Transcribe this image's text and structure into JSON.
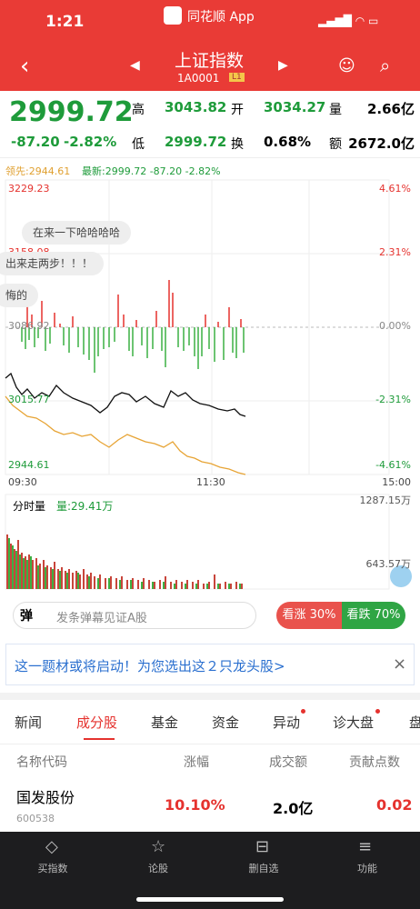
{
  "status_bar": {
    "time": "1:21",
    "app": "同花顺 App"
  },
  "nav": {
    "title": "上证指数",
    "code": "1A0001",
    "level": "L1"
  },
  "quote": {
    "price": "2999.72",
    "change": "-87.20",
    "change_pct": "-2.82%",
    "stats": [
      {
        "label": "高",
        "value": "3043.82"
      },
      {
        "label": "开",
        "value": "3034.27"
      },
      {
        "label": "量",
        "value": "2.66亿"
      },
      {
        "label": "低",
        "value": "2999.72"
      },
      {
        "label": "换",
        "value": "0.68%"
      },
      {
        "label": "额",
        "value": "2672.0亿"
      }
    ]
  },
  "chart": {
    "leader": "领先:2944.61",
    "latest": "最新:2999.72 -87.20 -2.82%",
    "left_labels": [
      "3229.23",
      "3158.08",
      "3086.92",
      "3015.77",
      "2944.61"
    ],
    "right_labels": [
      "4.61%",
      "2.31%",
      "0.00%",
      "-2.31%",
      "-4.61%"
    ],
    "times": [
      "09:30",
      "11:30",
      "15:00"
    ],
    "danmaku": [
      "在来一下哈哈哈哈",
      "出来走两步！！！",
      "悔的"
    ]
  },
  "volume": {
    "title": "分时量",
    "current": "量:29.41万",
    "labels": [
      "1287.15万",
      "643.57万"
    ]
  },
  "danmaku_bar": {
    "icon": "弹",
    "placeholder": "发条弹幕见证A股",
    "bull": "看涨 30%",
    "bear": "看跌 70%"
  },
  "banner": {
    "text": "这一题材或将启动！为您选出这２只龙头股>",
    "close": "×"
  },
  "tabs": [
    "新闻",
    "成分股",
    "基金",
    "资金",
    "异动",
    "诊大盘",
    "盘"
  ],
  "table": {
    "headers": [
      "名称代码",
      "涨幅",
      "成交额",
      "贡献点数"
    ],
    "rows": [
      {
        "name": "国发股份",
        "code": "600538",
        "change": "10.10%",
        "turnover": "2.0亿",
        "points": "0.02"
      }
    ]
  },
  "toolbar": [
    "买指数",
    "论股",
    "删自选",
    "功能"
  ]
}
